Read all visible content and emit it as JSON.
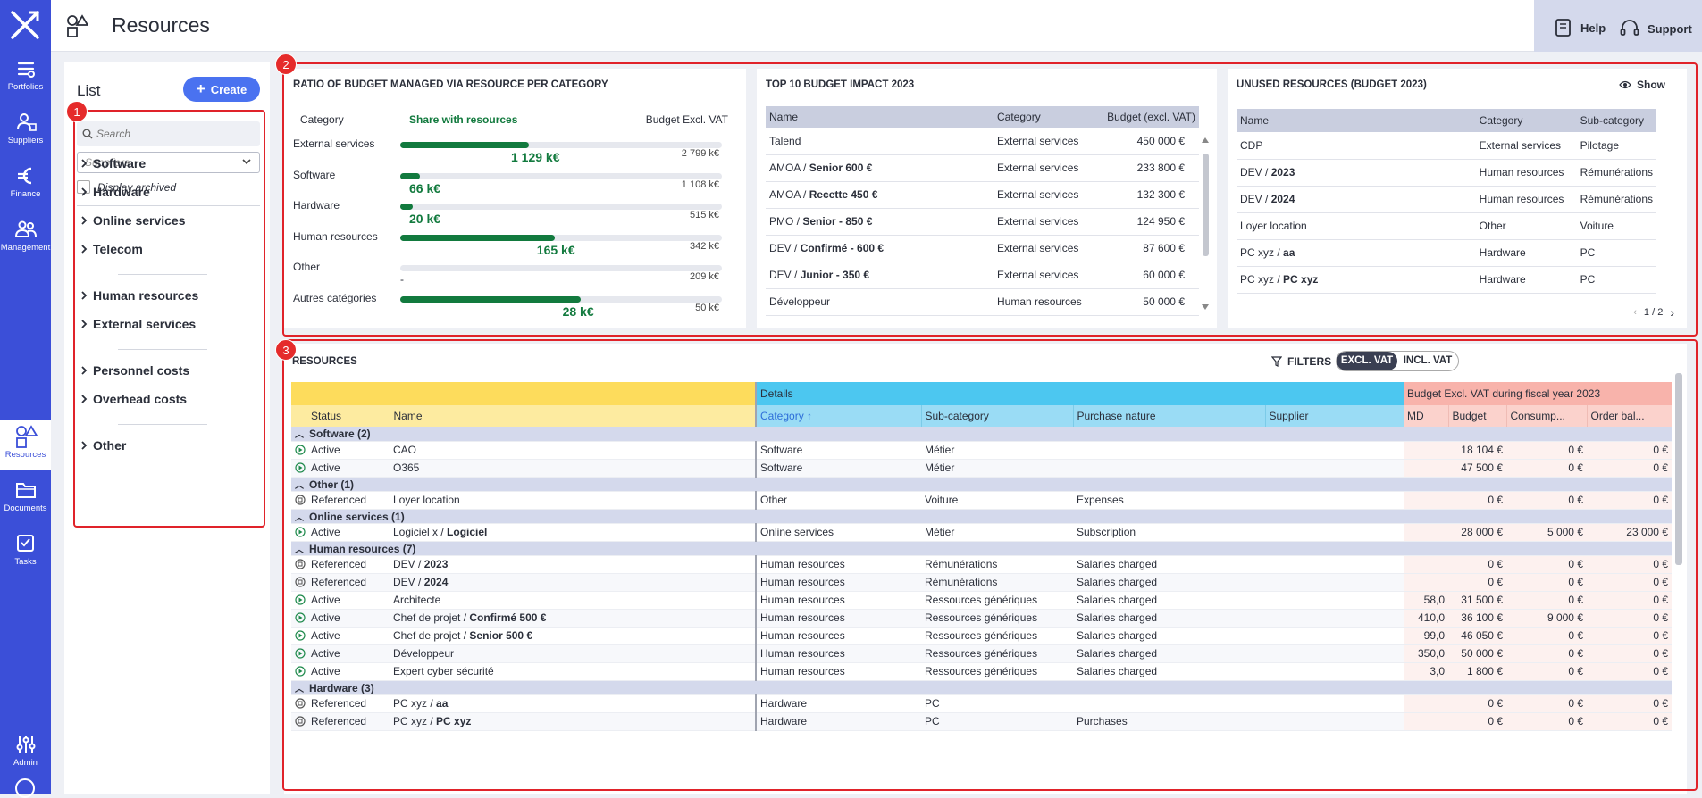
{
  "sidebar": {
    "items": [
      {
        "label": "Portfolios",
        "icon": "portfolios-icon"
      },
      {
        "label": "Suppliers",
        "icon": "suppliers-icon"
      },
      {
        "label": "Finance",
        "icon": "euro-icon"
      },
      {
        "label": "Management",
        "icon": "management-icon"
      },
      {
        "label": "Resources",
        "icon": "resources-icon"
      },
      {
        "label": "Documents",
        "icon": "folder-icon"
      },
      {
        "label": "Tasks",
        "icon": "tasks-icon"
      },
      {
        "label": "Admin",
        "icon": "admin-sliders-icon"
      }
    ]
  },
  "header": {
    "title": "Resources",
    "help": "Help",
    "support": "Support"
  },
  "list": {
    "title": "List",
    "create": "Create",
    "search_placeholder": "Search",
    "suppliers_placeholder": "Suppliers",
    "display_archived": "Display archived",
    "categories": [
      "Software",
      "Hardware",
      "Online services",
      "Telecom",
      "Human resources",
      "External services",
      "Personnel costs",
      "Overhead costs",
      "Other"
    ]
  },
  "ratio": {
    "title": "RATIO OF BUDGET MANAGED VIA RESOURCE PER CATEGORY",
    "col_category": "Category",
    "col_share": "Share with resources",
    "col_budget": "Budget Excl. VAT",
    "rows": [
      {
        "label": "External services",
        "fill": 0.4,
        "value": "1 129 k€",
        "total": "2 799 k€"
      },
      {
        "label": "Software",
        "fill": 0.06,
        "value": "66 k€",
        "total": "1 108 k€"
      },
      {
        "label": "Hardware",
        "fill": 0.04,
        "value": "20 k€",
        "total": "515 k€"
      },
      {
        "label": "Human resources",
        "fill": 0.48,
        "value": "165 k€",
        "total": "342 k€"
      },
      {
        "label": "Other",
        "fill": 0.0,
        "value": "-",
        "total": "209 k€"
      },
      {
        "label": "Autres catégories",
        "fill": 0.56,
        "value": "28 k€",
        "total": "50 k€"
      }
    ]
  },
  "top10": {
    "title": "TOP 10 BUDGET IMPACT 2023",
    "headers": [
      "Name",
      "Category",
      "Budget (excl. VAT)"
    ],
    "rows": [
      {
        "name": "Talend",
        "bold": "",
        "category": "External services",
        "budget": "450 000 €"
      },
      {
        "name": "AMOA / ",
        "bold": "Senior 600 €",
        "category": "External services",
        "budget": "233 800 €"
      },
      {
        "name": "AMOA / ",
        "bold": "Recette 450 €",
        "category": "External services",
        "budget": "132 300 €"
      },
      {
        "name": "PMO / ",
        "bold": "Senior - 850 €",
        "category": "External services",
        "budget": "124 950 €"
      },
      {
        "name": "DEV / ",
        "bold": "Confirmé - 600 €",
        "category": "External services",
        "budget": "87 600 €"
      },
      {
        "name": "DEV / ",
        "bold": "Junior - 350 €",
        "category": "External services",
        "budget": "60 000 €"
      },
      {
        "name": "Développeur",
        "bold": "",
        "category": "Human resources",
        "budget": "50 000 €"
      }
    ]
  },
  "unused": {
    "title": "UNUSED RESOURCES (BUDGET 2023)",
    "show": "Show",
    "headers": [
      "Name",
      "Category",
      "Sub-category"
    ],
    "rows": [
      {
        "name": "CDP",
        "bold": "",
        "category": "External services",
        "sub": "Pilotage"
      },
      {
        "name": "DEV / ",
        "bold": "2023",
        "category": "Human resources",
        "sub": "Rémunérations"
      },
      {
        "name": "DEV / ",
        "bold": "2024",
        "category": "Human resources",
        "sub": "Rémunérations"
      },
      {
        "name": "Loyer location",
        "bold": "",
        "category": "Other",
        "sub": "Voiture"
      },
      {
        "name": "PC xyz / ",
        "bold": "aa",
        "category": "Hardware",
        "sub": "PC"
      },
      {
        "name": "PC xyz / ",
        "bold": "PC xyz",
        "category": "Hardware",
        "sub": "PC"
      }
    ],
    "pagination": "1 / 2"
  },
  "resources": {
    "title": "RESOURCES",
    "filters": "FILTERS",
    "excl": "EXCL. VAT",
    "incl": "INCL. VAT",
    "group_details": "Details",
    "group_budget": "Budget Excl. VAT during fiscal year 2023",
    "headers": [
      "Status",
      "Name",
      "Category",
      "Sub-category",
      "Purchase nature",
      "Supplier",
      "MD",
      "Budget",
      "Consump...",
      "Order bal..."
    ],
    "groups": [
      {
        "label": "Software (2)",
        "rows": [
          {
            "status": "Active",
            "name": "CAO",
            "bold": "",
            "category": "Software",
            "sub": "Métier",
            "nature": "",
            "md": "",
            "budget": "18 104 €",
            "consump": "0 €",
            "order": "0 €"
          },
          {
            "status": "Active",
            "name": "O365",
            "bold": "",
            "category": "Software",
            "sub": "Métier",
            "nature": "",
            "md": "",
            "budget": "47 500 €",
            "consump": "0 €",
            "order": "0 €"
          }
        ]
      },
      {
        "label": "Other (1)",
        "rows": [
          {
            "status": "Referenced",
            "name": "Loyer location",
            "bold": "",
            "category": "Other",
            "sub": "Voiture",
            "nature": "Expenses",
            "md": "",
            "budget": "0 €",
            "consump": "0 €",
            "order": "0 €"
          }
        ]
      },
      {
        "label": "Online services (1)",
        "rows": [
          {
            "status": "Active",
            "name": "Logiciel x / ",
            "bold": "Logiciel",
            "category": "Online services",
            "sub": "Métier",
            "nature": "Subscription",
            "md": "",
            "budget": "28 000 €",
            "consump": "5 000 €",
            "order": "23 000 €"
          }
        ]
      },
      {
        "label": "Human resources (7)",
        "rows": [
          {
            "status": "Referenced",
            "name": "DEV / ",
            "bold": "2023",
            "category": "Human resources",
            "sub": "Rémunérations",
            "nature": "Salaries charged",
            "md": "",
            "budget": "0 €",
            "consump": "0 €",
            "order": "0 €"
          },
          {
            "status": "Referenced",
            "name": "DEV / ",
            "bold": "2024",
            "category": "Human resources",
            "sub": "Rémunérations",
            "nature": "Salaries charged",
            "md": "",
            "budget": "0 €",
            "consump": "0 €",
            "order": "0 €"
          },
          {
            "status": "Active",
            "name": "Architecte",
            "bold": "",
            "category": "Human resources",
            "sub": "Ressources génériques",
            "nature": "Salaries charged",
            "md": "58,0",
            "budget": "31 500 €",
            "consump": "0 €",
            "order": "0 €"
          },
          {
            "status": "Active",
            "name": "Chef de projet / ",
            "bold": "Confirmé 500 €",
            "category": "Human resources",
            "sub": "Ressources génériques",
            "nature": "Salaries charged",
            "md": "410,0",
            "budget": "36 100 €",
            "consump": "9 000 €",
            "order": "0 €"
          },
          {
            "status": "Active",
            "name": "Chef de projet / ",
            "bold": "Senior 500 €",
            "category": "Human resources",
            "sub": "Ressources génériques",
            "nature": "Salaries charged",
            "md": "99,0",
            "budget": "46 050 €",
            "consump": "0 €",
            "order": "0 €"
          },
          {
            "status": "Active",
            "name": "Développeur",
            "bold": "",
            "category": "Human resources",
            "sub": "Ressources génériques",
            "nature": "Salaries charged",
            "md": "350,0",
            "budget": "50 000 €",
            "consump": "0 €",
            "order": "0 €"
          },
          {
            "status": "Active",
            "name": "Expert cyber sécurité",
            "bold": "",
            "category": "Human resources",
            "sub": "Ressources génériques",
            "nature": "Salaries charged",
            "md": "3,0",
            "budget": "1 800 €",
            "consump": "0 €",
            "order": "0 €"
          }
        ]
      },
      {
        "label": "Hardware (3)",
        "rows": [
          {
            "status": "Referenced",
            "name": "PC xyz / ",
            "bold": "aa",
            "category": "Hardware",
            "sub": "PC",
            "nature": "",
            "md": "",
            "budget": "0 €",
            "consump": "0 €",
            "order": "0 €"
          },
          {
            "status": "Referenced",
            "name": "PC xyz / ",
            "bold": "PC xyz",
            "category": "Hardware",
            "sub": "PC",
            "nature": "Purchases",
            "md": "",
            "budget": "0 €",
            "consump": "0 €",
            "order": "0 €"
          }
        ]
      }
    ]
  },
  "annotations": [
    "1",
    "2",
    "3"
  ]
}
